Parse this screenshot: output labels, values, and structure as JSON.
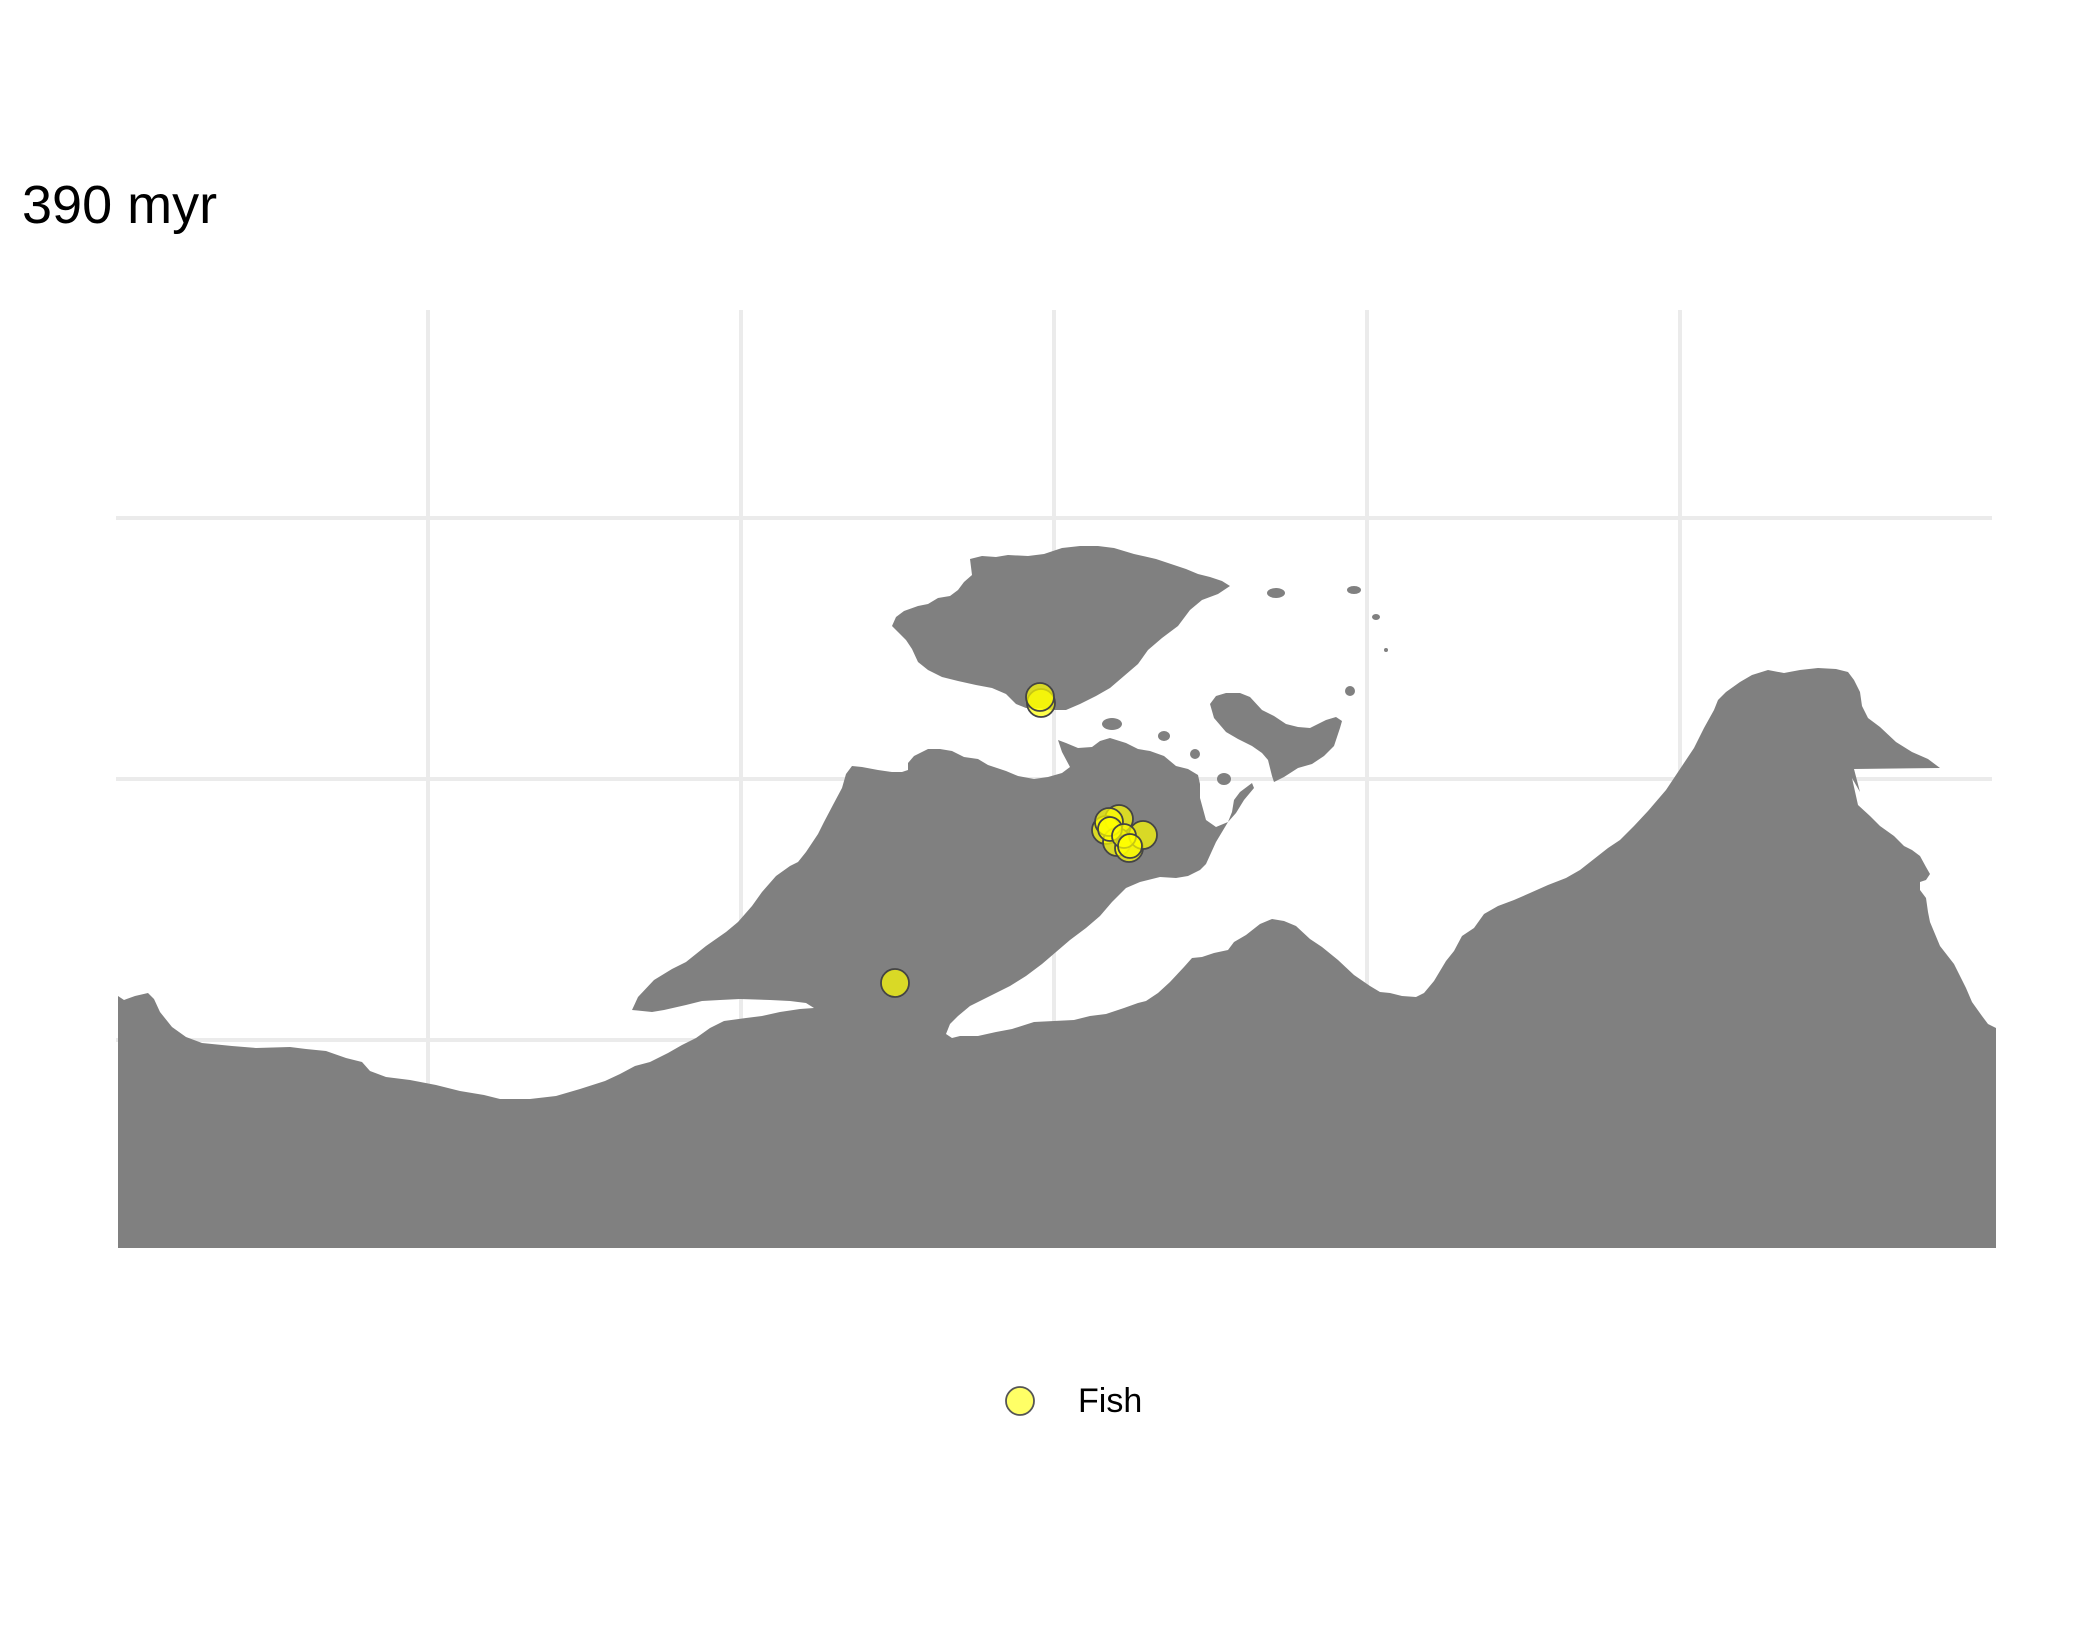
{
  "title": "390 myr",
  "legend": {
    "items": [
      {
        "label": "Fish",
        "fill": "#ffff33",
        "stroke": "#555555"
      }
    ]
  },
  "colors": {
    "land": "#808080",
    "grid": "#ebebeb",
    "background": "#ffffff",
    "point_fill": "#ffff00",
    "point_stroke": "#444444"
  },
  "occurrences": {
    "group": "Fish",
    "count": 12
  }
}
